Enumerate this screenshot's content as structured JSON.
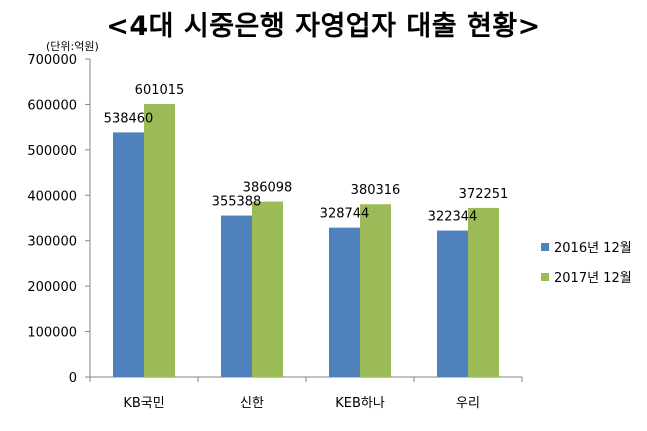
{
  "chart_data": {
    "type": "bar",
    "title": "<4대 시중은행 자영업자 대출 현황>",
    "unit": "(단위:억원)",
    "categories": [
      "KB국민",
      "신한",
      "KEB하나",
      "우리"
    ],
    "series": [
      {
        "name": "2016년 12월",
        "color": "#4f81bd",
        "values": [
          538460,
          355388,
          328744,
          322344
        ]
      },
      {
        "name": "2017년 12월",
        "color": "#9bbb59",
        "values": [
          601015,
          386098,
          380316,
          372251
        ]
      }
    ],
    "yticks": [
      "0",
      "100000",
      "200000",
      "300000",
      "400000",
      "500000",
      "600000",
      "700000"
    ],
    "ylim": [
      0,
      700000
    ],
    "grid": false,
    "legend": "right"
  }
}
